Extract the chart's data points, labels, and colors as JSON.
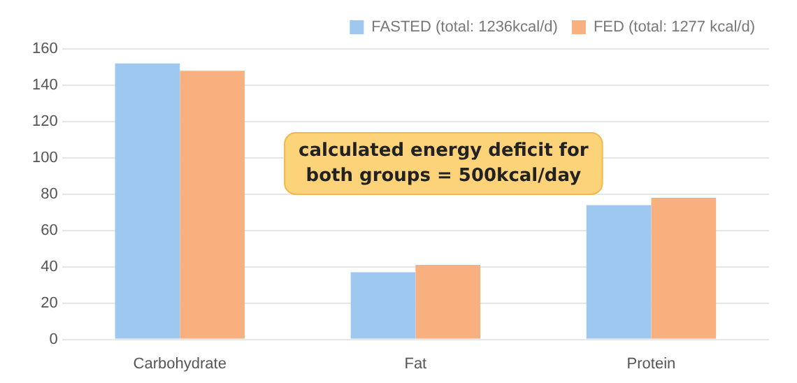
{
  "chart_data": {
    "type": "bar",
    "categories": [
      "Carbohydrate",
      "Fat",
      "Protein"
    ],
    "series": [
      {
        "name": "FASTED (total: 1236kcal/d)",
        "color": "#9fc8f0",
        "values": [
          152,
          37,
          74
        ]
      },
      {
        "name": "FED (total: 1277 kcal/d)",
        "color": "#f8b07f",
        "values": [
          148,
          41,
          78
        ]
      }
    ],
    "ylim": [
      0,
      160
    ],
    "yticks": [
      0,
      20,
      40,
      60,
      80,
      100,
      120,
      140,
      160
    ],
    "grid": "y",
    "legend": "top right",
    "annotations": [
      "calculated energy deficit for both groups = 500kcal/day"
    ]
  }
}
